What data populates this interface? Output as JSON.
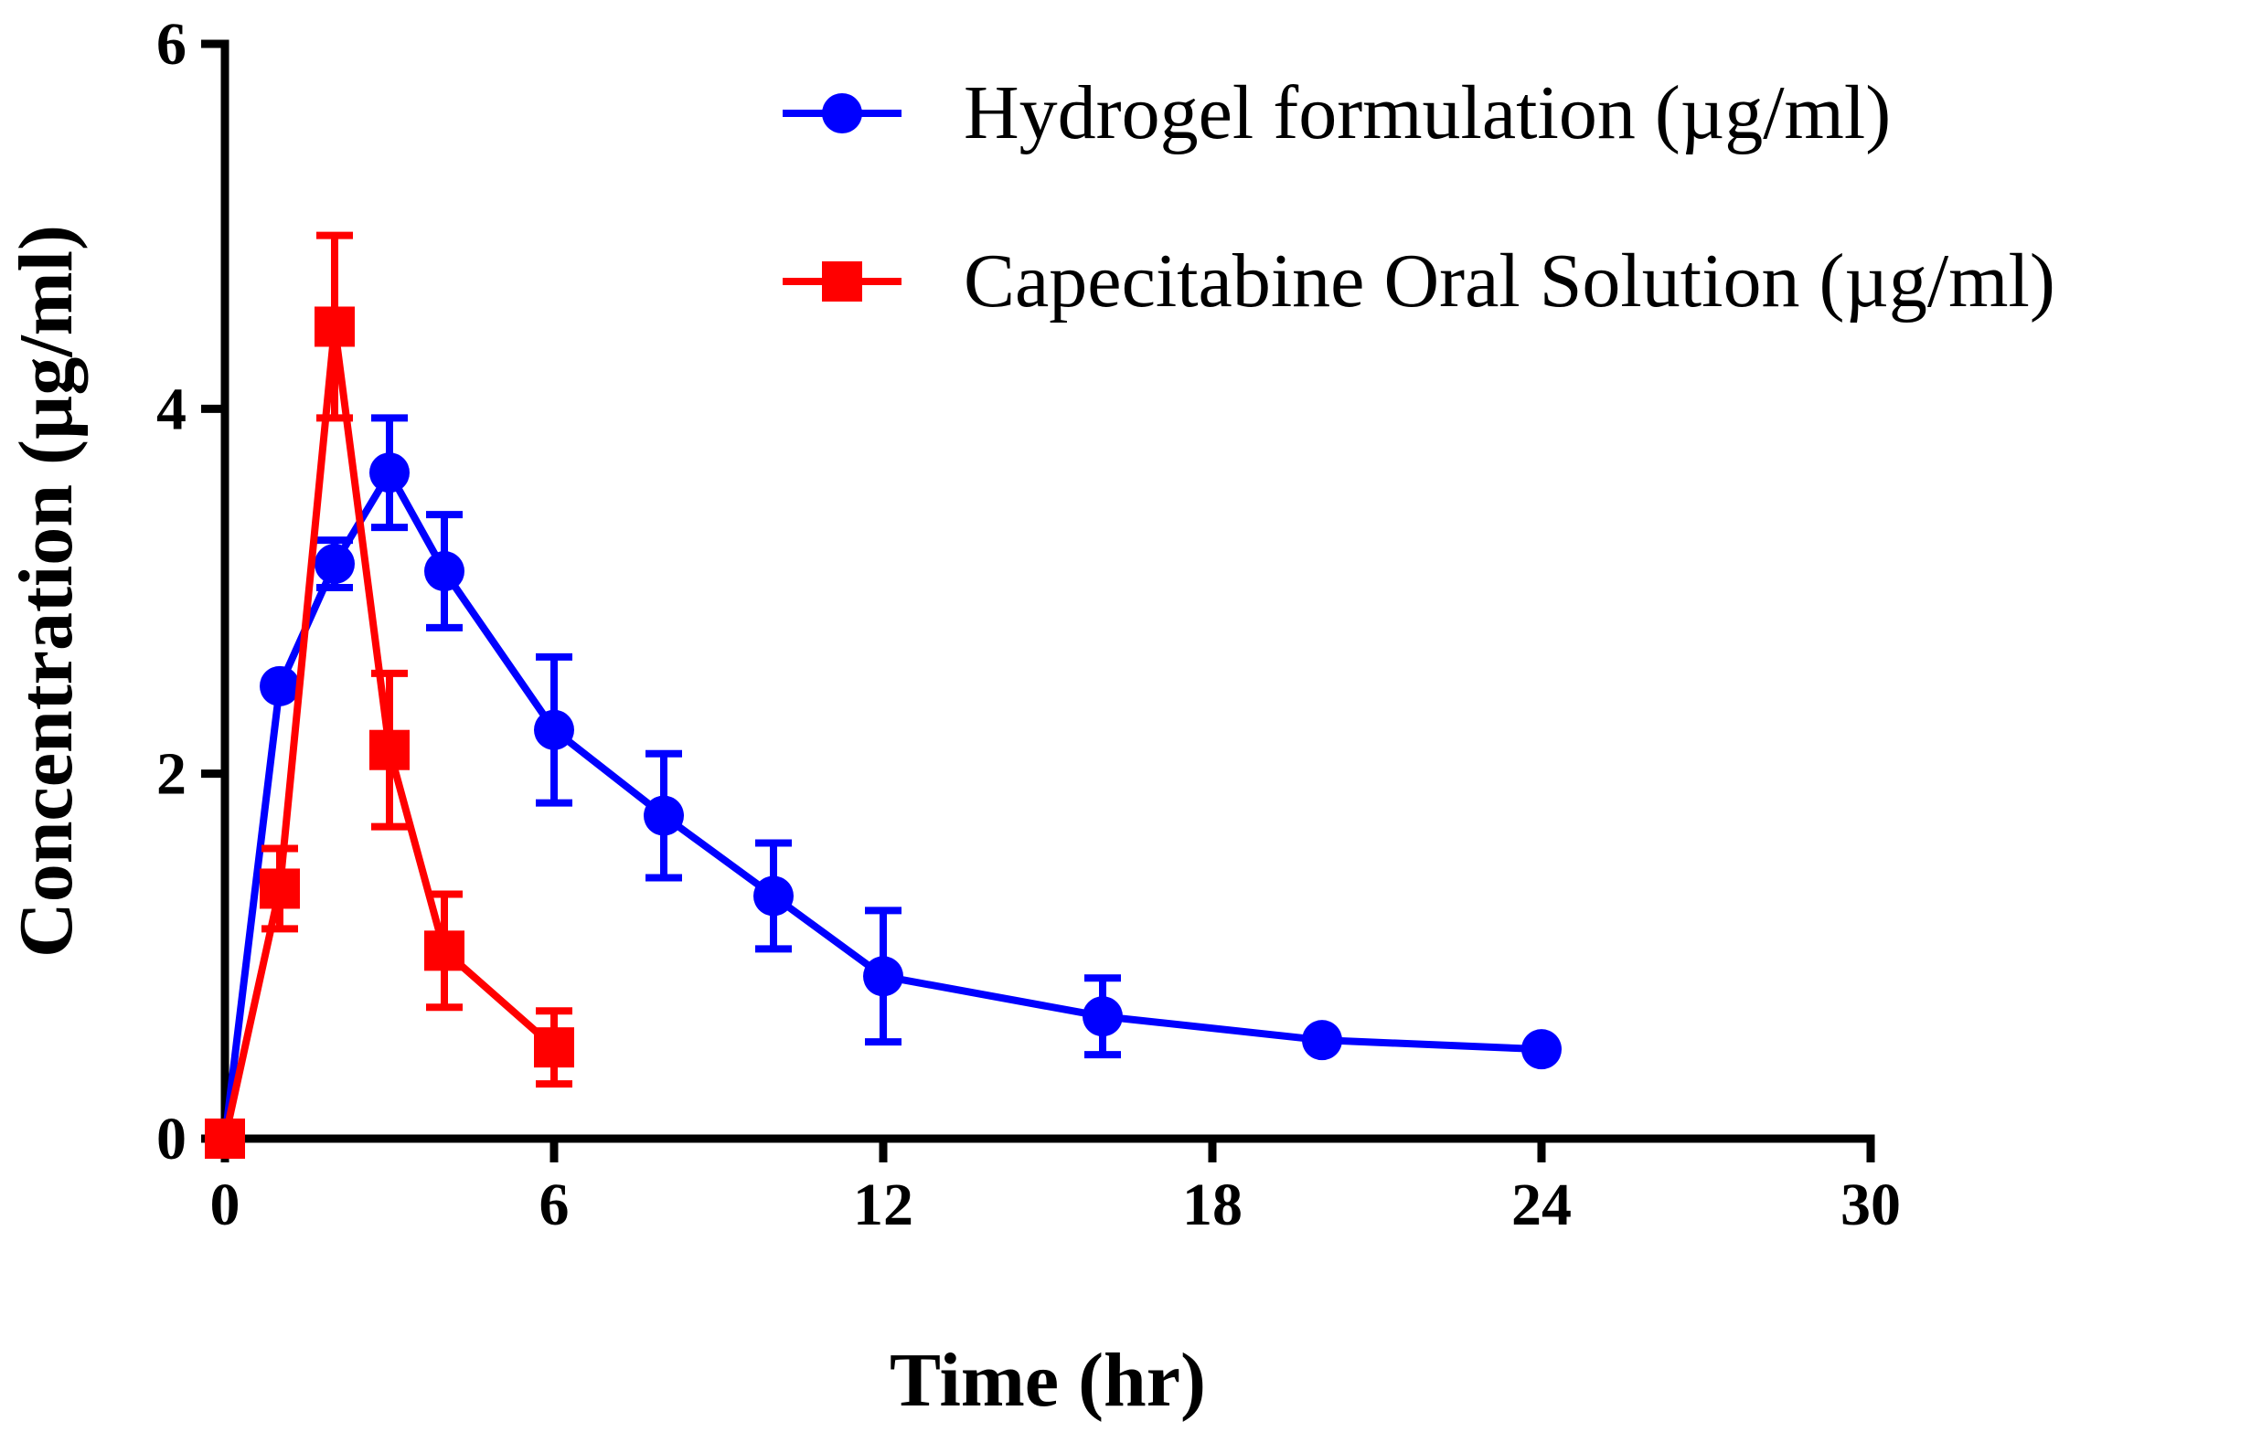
{
  "chart_data": {
    "type": "line",
    "title": "",
    "xlabel": "Time (hr)",
    "ylabel": "Concentration (µg/ml)",
    "xlim": [
      0,
      30
    ],
    "ylim": [
      0,
      6
    ],
    "xticks": [
      0,
      6,
      12,
      18,
      24,
      30
    ],
    "yticks": [
      0,
      2,
      4,
      6
    ],
    "grid": false,
    "legend_position": "top-right",
    "series": [
      {
        "name": "Hydrogel formulation (µg/ml)",
        "color": "#0000ff",
        "marker": "circle",
        "x": [
          0,
          1,
          2,
          3,
          4,
          6,
          8,
          10,
          12,
          16,
          20,
          24
        ],
        "y": [
          0,
          2.48,
          3.15,
          3.65,
          3.11,
          2.24,
          1.77,
          1.33,
          0.89,
          0.67,
          0.54,
          0.49
        ],
        "error": [
          0,
          0,
          0.13,
          0.3,
          0.31,
          0.4,
          0.34,
          0.29,
          0.36,
          0.21,
          0,
          0
        ]
      },
      {
        "name": "Capecitabine Oral Solution (µg/ml)",
        "color": "#ff0000",
        "marker": "square",
        "x": [
          0,
          1,
          2,
          3,
          4,
          6
        ],
        "y": [
          0,
          1.37,
          4.45,
          2.13,
          1.03,
          0.5
        ],
        "error": [
          0,
          0.22,
          0.5,
          0.42,
          0.31,
          0.2
        ]
      }
    ]
  }
}
